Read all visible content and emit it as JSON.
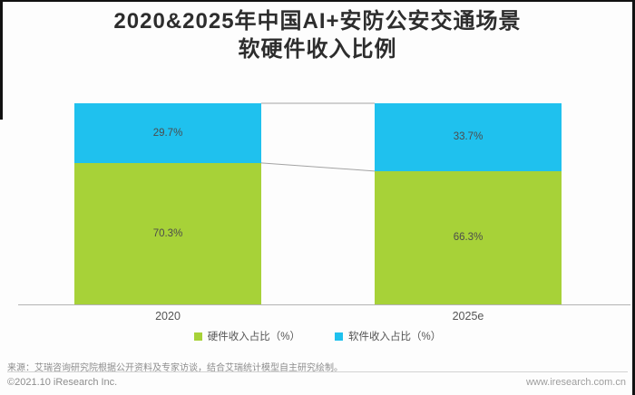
{
  "title": {
    "line1": "2020&2025年中国AI+安防公安交通场景",
    "line2": "软硬件收入比例"
  },
  "chart_data": {
    "type": "bar",
    "subtype": "stacked-percent",
    "categories": [
      "2020",
      "2025e"
    ],
    "series": [
      {
        "name": "硬件收入占比（%）",
        "color": "#a7d238",
        "values": [
          70.3,
          66.3
        ]
      },
      {
        "name": "软件收入占比（%）",
        "color": "#1fc1ee",
        "values": [
          29.7,
          33.7
        ]
      }
    ],
    "value_labels": {
      "hardware": [
        "70.3%",
        "66.3%"
      ],
      "software": [
        "29.7%",
        "33.7%"
      ]
    },
    "ylim": [
      0,
      100
    ],
    "grid": false,
    "legend_position": "bottom"
  },
  "footer": {
    "source": "来源：艾瑞咨询研究院根据公开资料及专家访谈，结合艾瑞统计模型自主研究绘制。",
    "copyright": "©2021.10 iResearch Inc.",
    "website": "www.iresearch.com.cn"
  }
}
